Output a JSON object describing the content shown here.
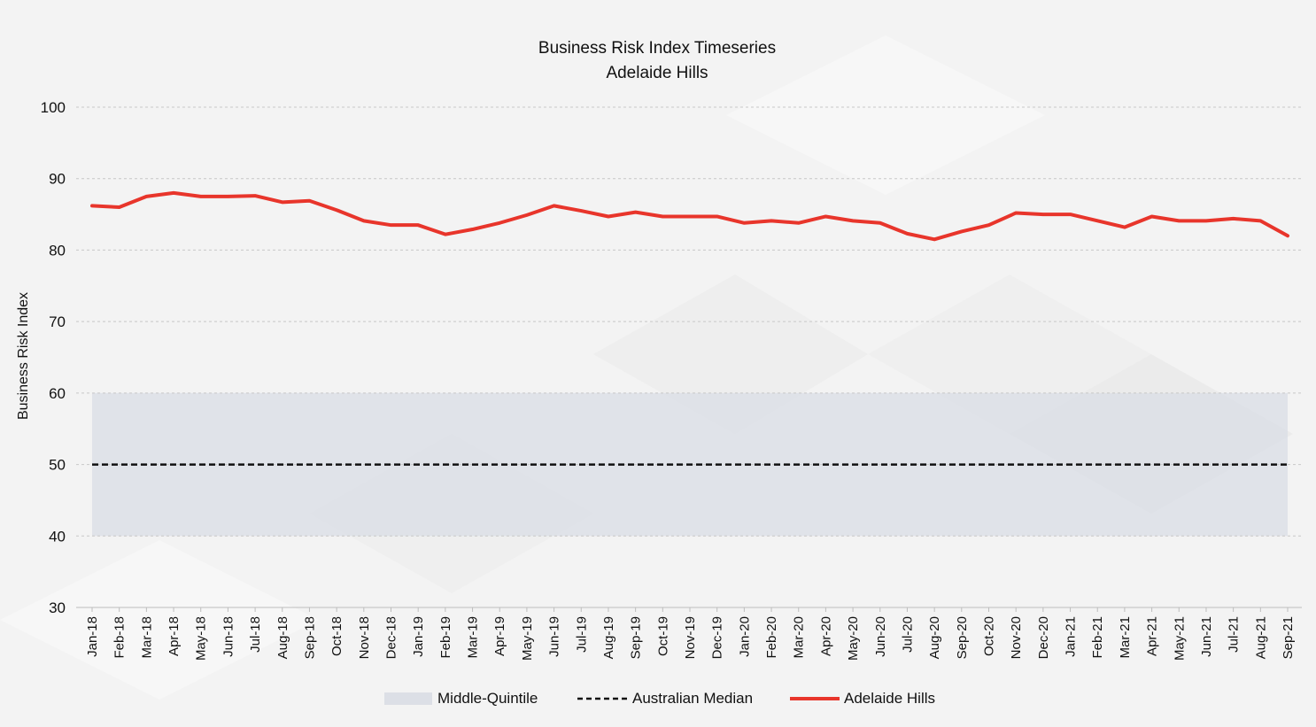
{
  "chart_data": {
    "type": "line",
    "title": "Business Risk Index Timeseries",
    "subtitle": "Adelaide Hills",
    "xlabel": "",
    "ylabel": "Business Risk Index",
    "ylim": [
      30,
      100
    ],
    "yticks": [
      30,
      40,
      50,
      60,
      70,
      80,
      90,
      100
    ],
    "grid": true,
    "legend_position": "bottom",
    "categories": [
      "Jan-18",
      "Feb-18",
      "Mar-18",
      "Apr-18",
      "May-18",
      "Jun-18",
      "Jul-18",
      "Aug-18",
      "Sep-18",
      "Oct-18",
      "Nov-18",
      "Dec-18",
      "Jan-19",
      "Feb-19",
      "Mar-19",
      "Apr-19",
      "May-19",
      "Jun-19",
      "Jul-19",
      "Aug-19",
      "Sep-19",
      "Oct-19",
      "Nov-19",
      "Dec-19",
      "Jan-20",
      "Feb-20",
      "Mar-20",
      "Apr-20",
      "May-20",
      "Jun-20",
      "Jul-20",
      "Aug-20",
      "Sep-20",
      "Oct-20",
      "Nov-20",
      "Dec-20",
      "Jan-21",
      "Feb-21",
      "Mar-21",
      "Apr-21",
      "May-21",
      "Jun-21",
      "Jul-21",
      "Aug-21",
      "Sep-21"
    ],
    "band": {
      "name": "Middle-Quintile",
      "low": 40,
      "high": 60,
      "color": "#dcdfe6"
    },
    "reference_line": {
      "name": "Australian Median",
      "value": 50,
      "color": "#111111"
    },
    "series": [
      {
        "name": "Adelaide Hills",
        "color": "#e8352b",
        "values": [
          86.2,
          86.0,
          87.5,
          88.0,
          87.5,
          87.5,
          87.6,
          86.7,
          86.9,
          85.6,
          84.1,
          83.5,
          83.5,
          82.2,
          82.9,
          83.8,
          84.9,
          86.2,
          85.5,
          84.7,
          85.3,
          84.7,
          84.7,
          84.7,
          83.8,
          84.1,
          83.8,
          84.7,
          84.1,
          83.8,
          82.3,
          81.5,
          82.6,
          83.5,
          85.2,
          85.0,
          85.0,
          84.1,
          83.2,
          84.7,
          84.1,
          84.1,
          84.4,
          84.1,
          82.0
        ]
      }
    ]
  }
}
